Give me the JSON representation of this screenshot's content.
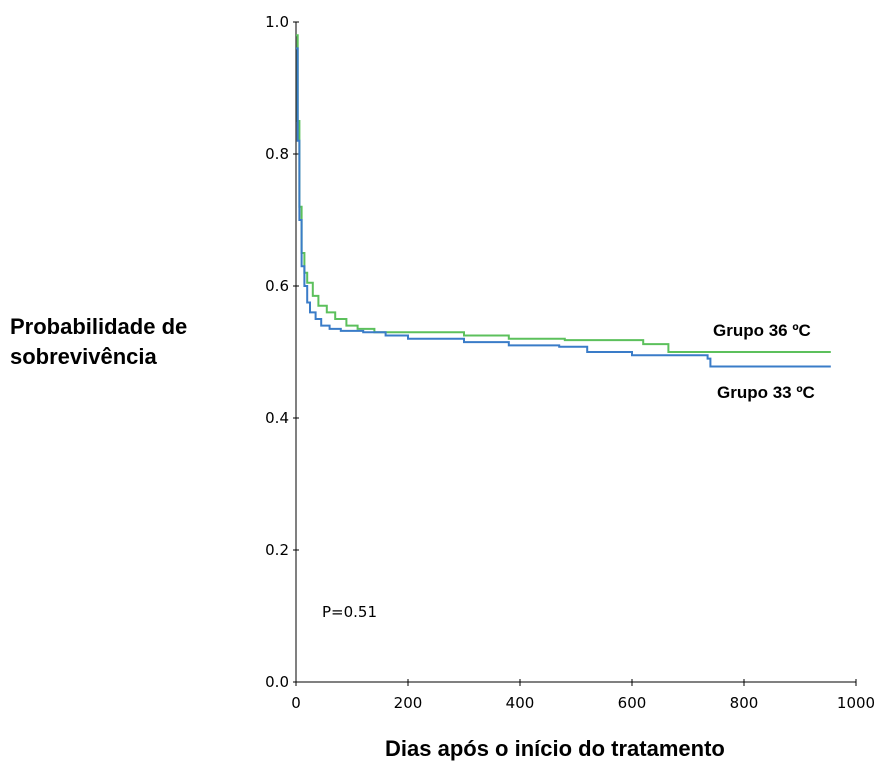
{
  "chart_data": {
    "type": "line",
    "ylabel_lines": [
      "Probabilidade de",
      "sobrevivência"
    ],
    "xlabel": "Dias após o início do tratamento",
    "annotation": "P=0.51",
    "xlim": [
      0,
      1000
    ],
    "ylim": [
      0.0,
      1.0
    ],
    "x_ticks": [
      "0",
      "200",
      "400",
      "600",
      "800",
      "1000"
    ],
    "y_ticks": [
      "0.0",
      "0.2",
      "0.4",
      "0.6",
      "0.8",
      "1.0"
    ],
    "grid": false,
    "series": [
      {
        "name": "Grupo 36 ºC",
        "color": "#5cc05c",
        "points": [
          [
            0,
            0.98
          ],
          [
            3,
            0.85
          ],
          [
            6,
            0.72
          ],
          [
            10,
            0.65
          ],
          [
            15,
            0.62
          ],
          [
            20,
            0.605
          ],
          [
            30,
            0.585
          ],
          [
            40,
            0.57
          ],
          [
            55,
            0.56
          ],
          [
            70,
            0.55
          ],
          [
            90,
            0.54
          ],
          [
            110,
            0.535
          ],
          [
            140,
            0.53
          ],
          [
            200,
            0.53
          ],
          [
            300,
            0.525
          ],
          [
            380,
            0.52
          ],
          [
            480,
            0.518
          ],
          [
            550,
            0.518
          ],
          [
            620,
            0.512
          ],
          [
            665,
            0.5
          ],
          [
            800,
            0.5
          ],
          [
            955,
            0.5
          ]
        ]
      },
      {
        "name": "Grupo 33 ºC",
        "color": "#3a7cc8",
        "points": [
          [
            0,
            0.96
          ],
          [
            3,
            0.82
          ],
          [
            6,
            0.7
          ],
          [
            10,
            0.63
          ],
          [
            15,
            0.6
          ],
          [
            20,
            0.575
          ],
          [
            25,
            0.56
          ],
          [
            35,
            0.55
          ],
          [
            45,
            0.54
          ],
          [
            60,
            0.535
          ],
          [
            80,
            0.532
          ],
          [
            120,
            0.53
          ],
          [
            160,
            0.525
          ],
          [
            200,
            0.52
          ],
          [
            300,
            0.515
          ],
          [
            380,
            0.51
          ],
          [
            470,
            0.508
          ],
          [
            520,
            0.5
          ],
          [
            600,
            0.495
          ],
          [
            735,
            0.49
          ],
          [
            740,
            0.478
          ],
          [
            955,
            0.478
          ]
        ]
      }
    ]
  }
}
